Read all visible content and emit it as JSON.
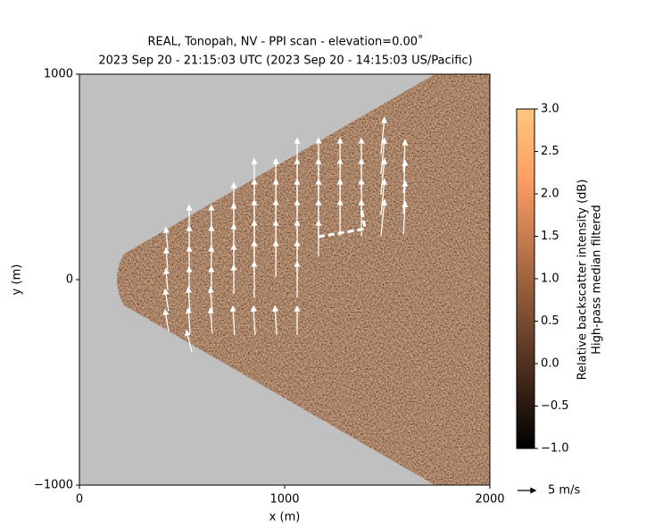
{
  "chart_data": {
    "type": "ppi_quiver",
    "title": "REAL, Tonopah, NV - PPI scan - elevation=0.00$^\\circ$",
    "title_lines": [
      "REAL, Tonopah, NV - PPI scan - elevation=0.00˚",
      "2023 Sep 20 - 21:15:03 UTC (2023 Sep 20 - 14:15:03 US/Pacific)"
    ],
    "x_label": "x (m)",
    "y_label": "y (m)",
    "xlim": [
      0,
      2000
    ],
    "ylim": [
      -1000,
      1000
    ],
    "xticks": [
      0,
      1000,
      2000
    ],
    "yticks": [
      {
        "value": -1000,
        "label": "−1000"
      },
      0,
      1000
    ],
    "azimuth_limits": [
      -30,
      30
    ],
    "range_min": 250,
    "colormap": "copper",
    "colorbar": {
      "labels": [
        "Relative backscatter intensity (dB)",
        "High-pass median filtered"
      ],
      "lim": [
        -1,
        3
      ],
      "ticks": [
        {
          "value": -1,
          "label": "−1.0"
        },
        {
          "value": -0.5,
          "label": "−0.5"
        },
        {
          "value": 0,
          "label": "0.0"
        },
        {
          "value": 0.5,
          "label": "0.5"
        },
        {
          "value": 1,
          "label": "1.0"
        },
        {
          "value": 1.5,
          "label": "1.5"
        },
        {
          "value": 2,
          "label": "2.0"
        },
        {
          "value": 2.5,
          "label": "2.5"
        },
        {
          "value": 3,
          "label": "3.0"
        }
      ]
    },
    "vectors": {
      "color": "#ffffff",
      "x": [
        426,
        426,
        426,
        426,
        426,
        535,
        535,
        535,
        535,
        535,
        535,
        535,
        643,
        643,
        643,
        643,
        643,
        643,
        752,
        752,
        752,
        752,
        752,
        752,
        852,
        852,
        852,
        852,
        852,
        852,
        852,
        957,
        957,
        957,
        957,
        957,
        957,
        1061,
        1061,
        1061,
        1061,
        1061,
        1061,
        1061,
        1061,
        1165,
        1165,
        1165,
        1165,
        1165,
        1270,
        1270,
        1270,
        1270,
        1374,
        1374,
        1374,
        1374,
        1478,
        1478,
        1478,
        1478,
        1478,
        1583,
        1583,
        1583,
        1583
      ],
      "y": [
        200,
        100,
        0,
        -100,
        -200,
        300,
        200,
        100,
        0,
        -100,
        -200,
        -300,
        300,
        200,
        100,
        0,
        -100,
        -200,
        400,
        300,
        200,
        100,
        0,
        -200,
        500,
        400,
        300,
        200,
        100,
        0,
        -200,
        500,
        400,
        300,
        200,
        100,
        -200,
        600,
        500,
        400,
        300,
        200,
        100,
        0,
        -200,
        600,
        500,
        400,
        300,
        200,
        600,
        500,
        400,
        300,
        600,
        500,
        400,
        300,
        700,
        600,
        500,
        400,
        300,
        600,
        500,
        400,
        300
      ],
      "u": [
        -0.5,
        -0.5,
        -0.5,
        -1,
        -1,
        0,
        0,
        0,
        0,
        -0.5,
        -0.5,
        -1.5,
        0,
        0,
        0,
        0,
        -0.5,
        -0.5,
        0,
        0,
        0,
        0,
        0,
        -0.5,
        0,
        0,
        0,
        0,
        0,
        0,
        -0.5,
        0,
        0,
        0,
        0,
        0,
        -0.5,
        0,
        0,
        0,
        0,
        0,
        0,
        0,
        0,
        0,
        0,
        0,
        0,
        0,
        0,
        0,
        0,
        0,
        0,
        0,
        0,
        0,
        1,
        1,
        1,
        1,
        1,
        0.5,
        0.5,
        0.5,
        0.5
      ],
      "v": [
        6,
        6,
        6,
        6,
        6,
        7,
        7,
        7,
        7,
        7,
        7,
        6,
        7,
        7,
        7,
        7,
        7,
        7,
        8,
        8,
        8,
        8,
        8,
        8,
        10,
        10,
        10,
        10,
        10,
        10,
        8,
        10,
        10,
        10,
        10,
        10,
        8,
        10,
        10,
        10,
        10,
        10,
        10,
        10,
        8,
        10,
        10,
        10,
        10,
        10,
        10,
        10,
        10,
        10,
        10,
        10,
        10,
        10,
        10,
        10,
        10,
        10,
        10,
        9,
        9,
        9,
        9
      ]
    },
    "quiver_key": {
      "value": 5,
      "label": "5 m/s"
    }
  }
}
